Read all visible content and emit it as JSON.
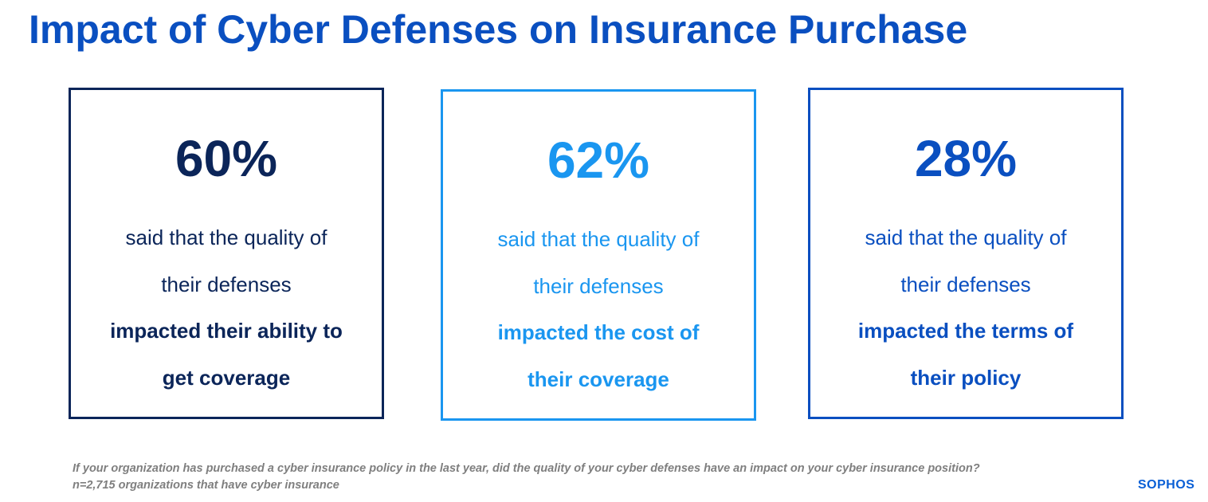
{
  "title": "Impact of Cyber Defenses on Insurance Purchase",
  "colors": {
    "title": "#0a4fc0",
    "dark_navy": "#0b2559",
    "light_blue": "#1a96f0",
    "mid_blue": "#0a4fc0"
  },
  "stats": [
    {
      "value": "60%",
      "line1": "said that the quality of",
      "line2": "their defenses",
      "bold1": "impacted their ability to",
      "bold2": "get coverage",
      "color": "#0b2559"
    },
    {
      "value": "62%",
      "line1": "said that the quality of",
      "line2": "their defenses",
      "bold1": "impacted the cost of",
      "bold2": "their coverage",
      "color": "#1a96f0"
    },
    {
      "value": "28%",
      "line1": "said that the quality of",
      "line2": "their defenses",
      "bold1": "impacted the terms of",
      "bold2": "their policy",
      "color": "#0a4fc0"
    }
  ],
  "footnote": "If your organization has purchased a cyber insurance policy in the last year, did the quality of your cyber defenses have an impact on your cyber insurance position? n=2,715 organizations that have cyber insurance",
  "logo": "SOPHOS"
}
